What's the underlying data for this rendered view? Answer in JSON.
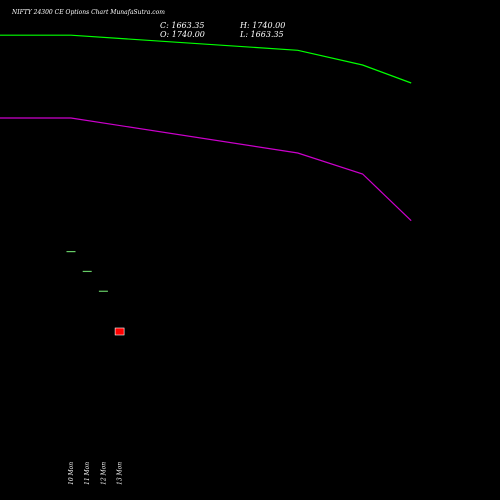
{
  "header": {
    "title": "NIFTY 24300  CE Options  Chart MunafaSutra.com",
    "close_label": "C: 1663.35",
    "open_label": "O: 1740.00",
    "high_label": "H: 1740.00",
    "low_label": "L: 1663.35"
  },
  "colors": {
    "background": "#000000",
    "text": "#ffffff",
    "ma_short": "#00ff00",
    "ma_long": "#cc00cc",
    "up_candle": "#66cc66",
    "down_candle": "#ff0000"
  },
  "chart_data": {
    "type": "candlestick",
    "title": "NIFTY 24300  CE Options  Chart MunafaSutra.com",
    "categories": [
      "10 Mon",
      "11 Mon",
      "12 Mon",
      "13 Mon"
    ],
    "ohlc": [
      {
        "date": "10 Mon",
        "open": 2010,
        "high": 2010,
        "low": 2010,
        "close": 2010,
        "color": "#66cc66"
      },
      {
        "date": "11 Mon",
        "open": 1925,
        "high": 1925,
        "low": 1925,
        "close": 1925,
        "color": "#66cc66"
      },
      {
        "date": "12 Mon",
        "open": 1840,
        "high": 1840,
        "low": 1840,
        "close": 1840,
        "color": "#66cc66"
      },
      {
        "date": "13 Mon",
        "open": 1680,
        "high": 1680,
        "low": 1650,
        "close": 1650,
        "color": "#ff0000"
      }
    ],
    "lines": [
      {
        "color": "#00ff00",
        "points": [
          {
            "x": "edge-left",
            "y": 2935
          },
          {
            "x": "10 Mon",
            "y": 2935
          },
          {
            "x": "14",
            "y": 2870
          },
          {
            "x": "18",
            "y": 2807
          },
          {
            "x": "21",
            "y": 2730
          }
        ]
      },
      {
        "color": "#cc00cc",
        "points": [
          {
            "x": "edge-left",
            "y": 2580
          },
          {
            "x": "10 Mon",
            "y": 2580
          },
          {
            "x": "14",
            "y": 2430
          },
          {
            "x": "18",
            "y": 2340
          },
          {
            "x": "21",
            "y": 2140
          }
        ]
      }
    ],
    "ylim": [
      1200,
      3000
    ],
    "xlabel": "",
    "ylabel": "",
    "grid": false,
    "legend": "none"
  }
}
